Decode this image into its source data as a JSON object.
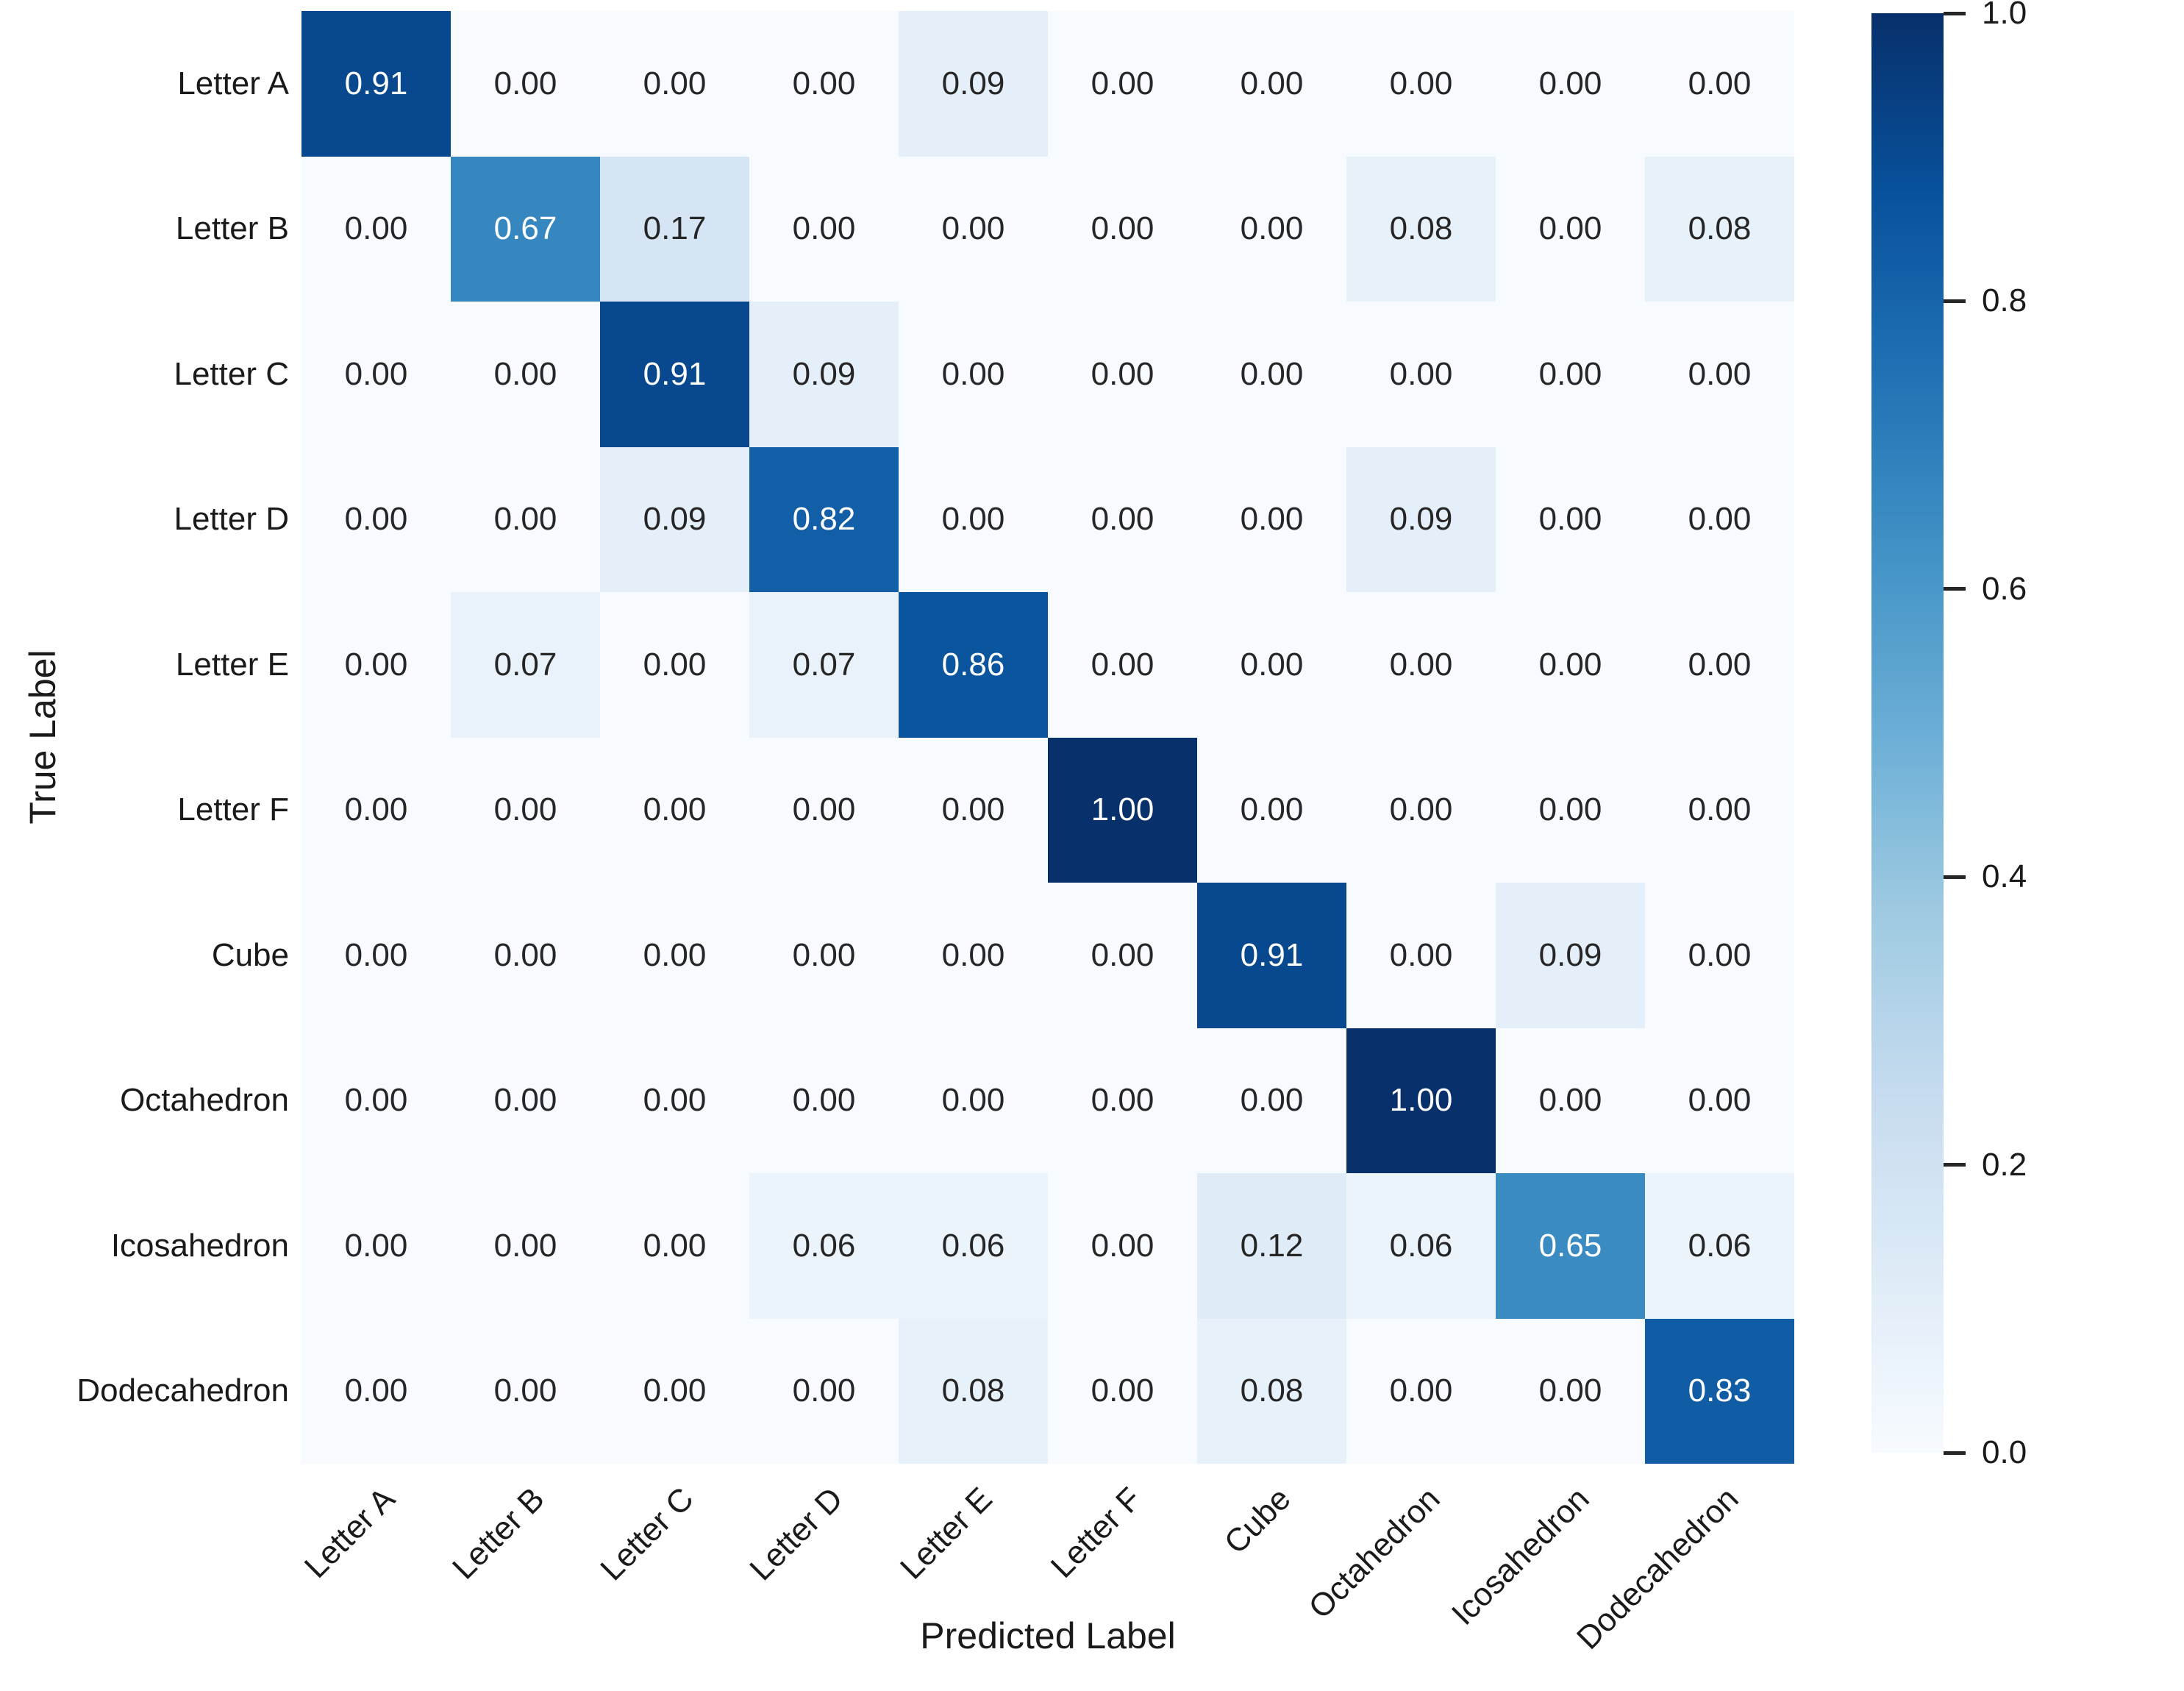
{
  "figure": {
    "x_axis_title": "Predicted Label",
    "y_axis_title": "True Label"
  },
  "chart_data": {
    "type": "heatmap",
    "title": "",
    "xlabel": "Predicted Label",
    "ylabel": "True Label",
    "x_labels": [
      "Letter A",
      "Letter B",
      "Letter C",
      "Letter D",
      "Letter E",
      "Letter F",
      "Cube",
      "Octahedron",
      "Icosahedron",
      "Dodecahedron"
    ],
    "y_labels": [
      "Letter A",
      "Letter B",
      "Letter C",
      "Letter D",
      "Letter E",
      "Letter F",
      "Cube",
      "Octahedron",
      "Icosahedron",
      "Dodecahedron"
    ],
    "matrix": [
      [
        0.91,
        0.0,
        0.0,
        0.0,
        0.09,
        0.0,
        0.0,
        0.0,
        0.0,
        0.0
      ],
      [
        0.0,
        0.67,
        0.17,
        0.0,
        0.0,
        0.0,
        0.0,
        0.08,
        0.0,
        0.08
      ],
      [
        0.0,
        0.0,
        0.91,
        0.09,
        0.0,
        0.0,
        0.0,
        0.0,
        0.0,
        0.0
      ],
      [
        0.0,
        0.0,
        0.09,
        0.82,
        0.0,
        0.0,
        0.0,
        0.09,
        0.0,
        0.0
      ],
      [
        0.0,
        0.07,
        0.0,
        0.07,
        0.86,
        0.0,
        0.0,
        0.0,
        0.0,
        0.0
      ],
      [
        0.0,
        0.0,
        0.0,
        0.0,
        0.0,
        1.0,
        0.0,
        0.0,
        0.0,
        0.0
      ],
      [
        0.0,
        0.0,
        0.0,
        0.0,
        0.0,
        0.0,
        0.91,
        0.0,
        0.09,
        0.0
      ],
      [
        0.0,
        0.0,
        0.0,
        0.0,
        0.0,
        0.0,
        0.0,
        1.0,
        0.0,
        0.0
      ],
      [
        0.0,
        0.0,
        0.0,
        0.06,
        0.06,
        0.0,
        0.12,
        0.06,
        0.65,
        0.06
      ],
      [
        0.0,
        0.0,
        0.0,
        0.0,
        0.08,
        0.0,
        0.08,
        0.0,
        0.0,
        0.83
      ]
    ],
    "value_decimals": 2,
    "vmin": 0.0,
    "vmax": 1.0,
    "colormap": "Blues",
    "colormap_stops": [
      {
        "pos": 0.0,
        "color": "#f7fbff"
      },
      {
        "pos": 0.125,
        "color": "#deebf7"
      },
      {
        "pos": 0.25,
        "color": "#c6dbef"
      },
      {
        "pos": 0.375,
        "color": "#9ecae1"
      },
      {
        "pos": 0.5,
        "color": "#6baed6"
      },
      {
        "pos": 0.625,
        "color": "#4292c6"
      },
      {
        "pos": 0.75,
        "color": "#2171b5"
      },
      {
        "pos": 0.875,
        "color": "#08519c"
      },
      {
        "pos": 1.0,
        "color": "#08306b"
      }
    ],
    "annotation_colors": {
      "on_light": "#262626",
      "on_dark": "#ffffff"
    },
    "annotation_dark_threshold": 0.55,
    "grid": false,
    "legend_position": "right-colorbar",
    "colorbar": {
      "ticks": [
        1.0,
        0.8,
        0.6,
        0.4,
        0.2,
        0.0
      ],
      "tick_labels": [
        "1.0",
        "0.8",
        "0.6",
        "0.4",
        "0.2",
        "0.0"
      ]
    }
  }
}
